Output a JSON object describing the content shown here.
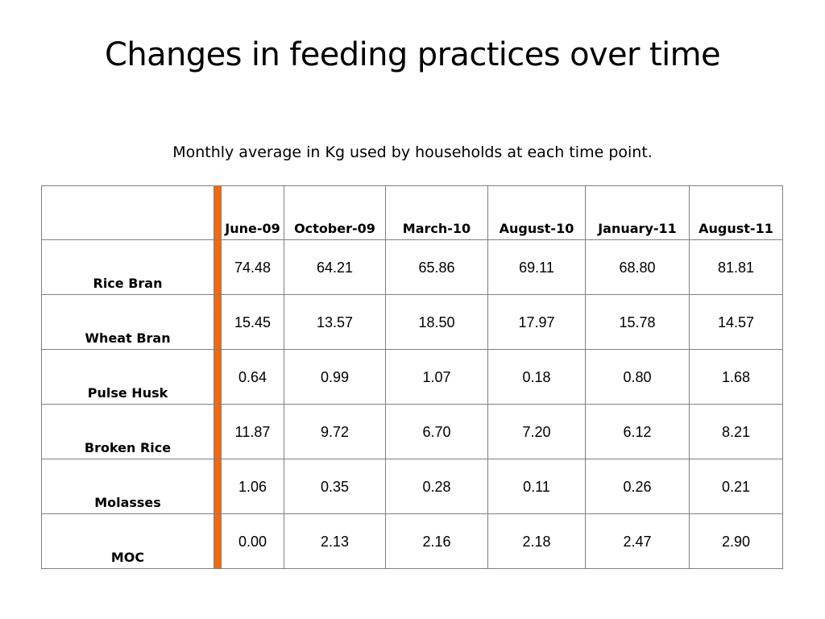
{
  "slide": {
    "title": "Changes in feeding practices over time",
    "subtitle": "Monthly average in Kg used by households at each time point."
  },
  "table": {
    "columns": [
      "June-09",
      "October-09",
      "March-10",
      "August-10",
      "January-11",
      "August-11"
    ],
    "rows": [
      {
        "label": "Rice Bran",
        "values": [
          "74.48",
          "64.21",
          "65.86",
          "69.11",
          "68.80",
          "81.81"
        ]
      },
      {
        "label": "Wheat Bran",
        "values": [
          "15.45",
          "13.57",
          "18.50",
          "17.97",
          "15.78",
          "14.57"
        ]
      },
      {
        "label": "Pulse Husk",
        "values": [
          "0.64",
          "0.99",
          "1.07",
          "0.18",
          "0.80",
          "1.68"
        ]
      },
      {
        "label": "Broken Rice",
        "values": [
          "11.87",
          "9.72",
          "6.70",
          "7.20",
          "6.12",
          "8.21"
        ]
      },
      {
        "label": "Molasses",
        "values": [
          "1.06",
          "0.35",
          "0.28",
          "0.11",
          "0.26",
          "0.21"
        ]
      },
      {
        "label": "MOC",
        "values": [
          "0.00",
          "2.13",
          "2.16",
          "2.18",
          "2.47",
          "2.90"
        ]
      }
    ],
    "accent_color": "#f26a10"
  }
}
